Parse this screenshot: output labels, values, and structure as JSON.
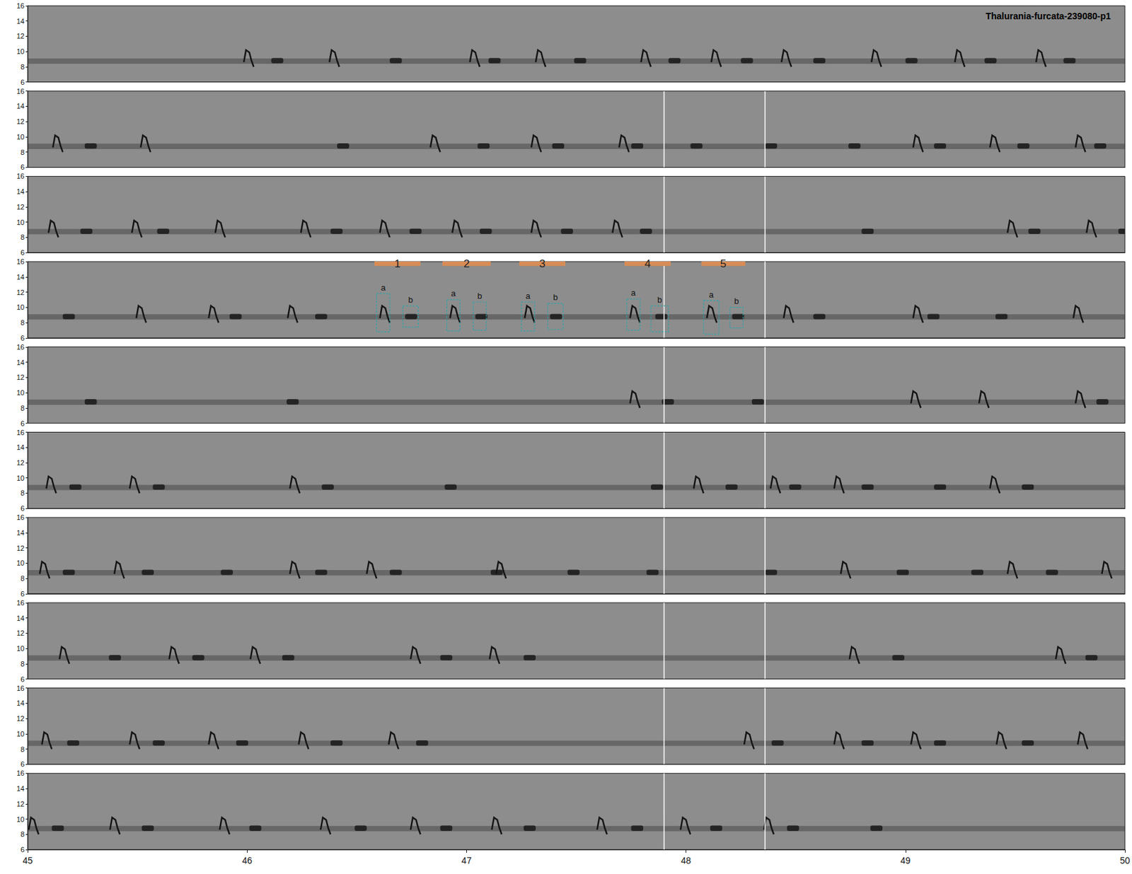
{
  "chart_data": {
    "type": "spectrogram",
    "title": "Thalurania-furcata-239080-p1",
    "xlim": [
      45,
      50
    ],
    "xticks": [
      45,
      46,
      47,
      48,
      49,
      50
    ],
    "ylim": [
      6,
      16
    ],
    "yticks": [
      6,
      8,
      10,
      12,
      14,
      16
    ],
    "band_khz": [
      8.4,
      9.1
    ],
    "note_a_khz": [
      8,
      10.2
    ],
    "note_b_khz": 8.8,
    "vertical_lines": [
      47.9,
      48.36
    ],
    "vertical_line_panels": [
      2,
      3,
      4,
      5,
      6,
      7,
      8,
      9,
      10
    ],
    "panels": [
      {
        "a": [
          46.0,
          46.39,
          47.03,
          47.33,
          47.81,
          48.13,
          48.45,
          48.86,
          49.24,
          49.61
        ],
        "b": [
          46.13,
          46.67,
          47.12,
          47.51,
          47.94,
          48.27,
          48.6,
          49.02,
          49.38,
          49.74
        ]
      },
      {
        "a": [
          45.13,
          45.53,
          46.85,
          47.31,
          47.71,
          49.05,
          49.4,
          49.79
        ],
        "b": [
          45.28,
          46.43,
          47.07,
          47.41,
          47.77,
          48.04,
          48.38,
          48.76,
          49.15,
          49.53,
          49.88
        ]
      },
      {
        "a": [
          45.11,
          45.49,
          45.87,
          46.26,
          46.62,
          46.95,
          47.31,
          47.68,
          49.48,
          49.84
        ],
        "b": [
          45.26,
          45.61,
          46.4,
          46.76,
          47.08,
          47.45,
          47.81,
          48.82,
          49.58,
          49.99
        ]
      },
      {
        "a": [
          45.51,
          45.84,
          46.2,
          46.62,
          46.94,
          47.28,
          47.76,
          48.11,
          48.46,
          49.05,
          49.78
        ],
        "b": [
          45.18,
          45.94,
          46.33,
          46.74,
          47.06,
          47.4,
          47.88,
          48.23,
          48.6,
          49.12,
          49.43
        ]
      },
      {
        "a": [
          47.76,
          49.04,
          49.35,
          49.79
        ],
        "b": [
          45.28,
          46.2,
          47.91,
          48.32,
          49.89
        ]
      },
      {
        "a": [
          45.1,
          45.48,
          46.21,
          48.05,
          48.4,
          48.69,
          49.4
        ],
        "b": [
          45.21,
          45.59,
          46.36,
          46.92,
          47.86,
          48.2,
          48.49,
          48.82,
          49.15,
          49.55
        ]
      },
      {
        "a": [
          45.07,
          45.41,
          46.21,
          46.56,
          47.15,
          48.72,
          49.48,
          49.91
        ],
        "b": [
          45.18,
          45.54,
          45.9,
          46.33,
          46.67,
          47.13,
          47.48,
          47.84,
          48.38,
          48.98,
          49.32,
          49.66
        ]
      },
      {
        "a": [
          45.16,
          45.66,
          46.03,
          46.76,
          47.12,
          48.76,
          49.7
        ],
        "b": [
          45.39,
          45.77,
          46.18,
          46.9,
          47.28,
          48.96,
          49.84
        ]
      },
      {
        "a": [
          45.08,
          45.48,
          45.84,
          46.25,
          46.66,
          48.28,
          48.69,
          49.04,
          49.43,
          49.8
        ],
        "b": [
          45.2,
          45.59,
          45.97,
          46.4,
          46.79,
          48.41,
          48.82,
          49.15,
          49.55
        ]
      },
      {
        "a": [
          45.02,
          45.39,
          45.89,
          46.35,
          46.76,
          47.13,
          47.61,
          47.99,
          48.37
        ],
        "b": [
          45.13,
          45.54,
          46.03,
          46.51,
          46.9,
          47.28,
          47.77,
          48.13,
          48.48,
          48.86
        ]
      }
    ],
    "annotation": {
      "panel": 4,
      "phrases": [
        {
          "label": "1",
          "x": [
            46.58,
            46.79
          ]
        },
        {
          "label": "2",
          "x": [
            46.89,
            47.11
          ]
        },
        {
          "label": "3",
          "x": [
            47.24,
            47.45
          ]
        },
        {
          "label": "4",
          "x": [
            47.72,
            47.93
          ]
        },
        {
          "label": "5",
          "x": [
            48.07,
            48.27
          ]
        }
      ],
      "boxes": [
        {
          "label": "a",
          "x": [
            46.59,
            46.65
          ],
          "y": [
            6.8,
            11.8
          ]
        },
        {
          "label": "b",
          "x": [
            46.71,
            46.78
          ],
          "y": [
            7.4,
            10.2
          ]
        },
        {
          "label": "a",
          "x": [
            46.91,
            46.97
          ],
          "y": [
            6.9,
            11.0
          ]
        },
        {
          "label": "b",
          "x": [
            47.03,
            47.09
          ],
          "y": [
            7.0,
            10.7
          ]
        },
        {
          "label": "a",
          "x": [
            47.25,
            47.31
          ],
          "y": [
            6.9,
            10.7
          ]
        },
        {
          "label": "b",
          "x": [
            47.37,
            47.44
          ],
          "y": [
            7.1,
            10.5
          ]
        },
        {
          "label": "a",
          "x": [
            47.73,
            47.79
          ],
          "y": [
            7.0,
            11.1
          ]
        },
        {
          "label": "b",
          "x": [
            47.84,
            47.92
          ],
          "y": [
            6.8,
            10.2
          ]
        },
        {
          "label": "a",
          "x": [
            48.08,
            48.15
          ],
          "y": [
            6.5,
            10.9
          ]
        },
        {
          "label": "b",
          "x": [
            48.2,
            48.26
          ],
          "y": [
            7.3,
            10.0
          ]
        }
      ]
    }
  }
}
